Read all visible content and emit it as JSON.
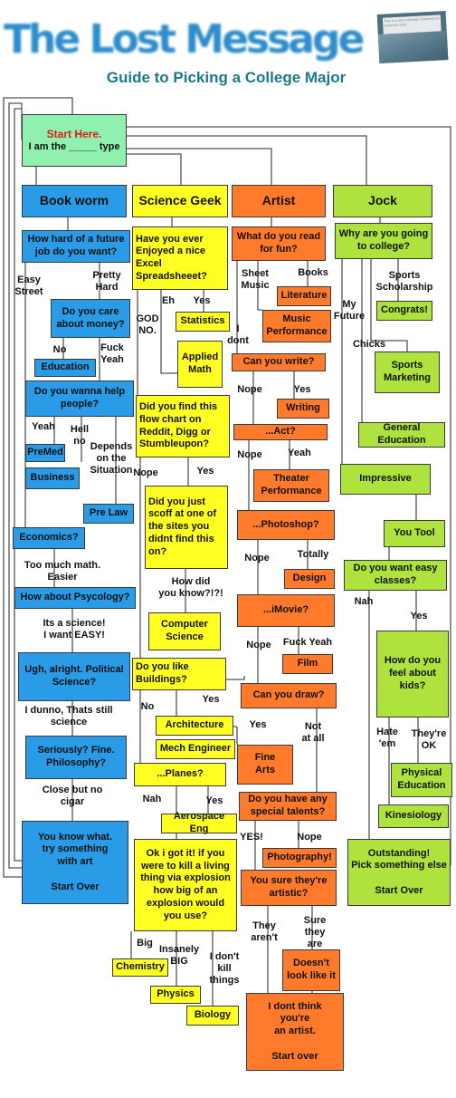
{
  "header": {
    "logo_text": "The Lost Message",
    "subtitle": "Guide to Picking a College Major",
    "envelope_text": "This is a lost message intended for someone else."
  },
  "colors": {
    "blue": "#2a9be6",
    "yellow": "#ffff22",
    "orange": "#ff7a2a",
    "green": "#aee23c",
    "start": "#8ff0b0",
    "start_title": "#e01818",
    "logo": "#2e8dcc",
    "subtitle": "#1b7a8a",
    "line": "#555555"
  },
  "nodes": {
    "start_title": "Start Here.",
    "start_text": "I am the _____ type",
    "bookworm": "Book worm",
    "science_geek": "Science Geek",
    "artist": "Artist",
    "jock": "Jock",
    "bw_q_future": "How hard of a future job do you want?",
    "bw_q_money": "Do you care about money?",
    "bw_education": "Education",
    "bw_q_help": "Do you wanna help people?",
    "bw_premed": "PreMed",
    "bw_business": "Business",
    "bw_prelaw": "Pre Law",
    "bw_economics": "Economics?",
    "bw_psych": "How about Psycology?",
    "bw_polisci": "Ugh, alright. Political Science?",
    "bw_philosophy": "Seriously? Fine.\nPhilosophy?",
    "bw_art": "You know what.\ntry something\nwith art\n\nStart Over",
    "sg_q_spreadsheet": "Have you ever Enjoyed a nice Excel Spreadsheeet?",
    "sg_statistics": "Statistics",
    "sg_applied_math": "Applied\nMath",
    "sg_q_reddit": "Did you find this flow chart on Reddit, Digg or Stumbleupon?",
    "sg_q_scoff": "Did you just scoff at one of the sites you didnt find this on?",
    "sg_computer_science": "Computer\nScience",
    "sg_q_buildings": "Do you like Buildings?",
    "sg_architecture": "Architecture",
    "sg_mech_engineer": "Mech Engineer",
    "sg_q_planes": "...Planes?",
    "sg_aerospace": "Aerospace Eng",
    "sg_q_explosion": "Ok i got it! if you were to kill a living thing via explosion how big of an explosion would you use?",
    "sg_chemistry": "Chemistry",
    "sg_physics": "Physics",
    "sg_biology": "Biology",
    "ar_q_read": "What do you read for fun?",
    "ar_literature": "Literature",
    "ar_music_perf": "Music\nPerformance",
    "ar_q_write": "Can you write?",
    "ar_writing": "Writing",
    "ar_q_act": "...Act?",
    "ar_theater": "Theater\nPerformance",
    "ar_q_photoshop": "...Photoshop?",
    "ar_design": "Design",
    "ar_q_imovie": "...iMovie?",
    "ar_film": "Film",
    "ar_q_draw": "Can you draw?",
    "ar_fine_arts": "Fine\nArts",
    "ar_q_talents": "Do you have any special talents?",
    "ar_photography": "Photography!",
    "ar_q_artistic": "You sure they're artistic?",
    "ar_doesnt_look": "Doesn't\nlook like it",
    "ar_not_artist": "I dont think\nyou're\nan artist.\n\nStart over",
    "jk_q_why": "Why are you going to college?",
    "jk_congrats": "Congrats!",
    "jk_sports_marketing": "Sports\nMarketing",
    "jk_general_ed": "General\nEducation",
    "jk_impressive": "Impressive",
    "jk_you_tool": "You Tool",
    "jk_q_easy": "Do you want easy classes?",
    "jk_q_kids": "How do you feel about kids?",
    "jk_phys_ed": "Physical\nEducation",
    "jk_kinesiology": "Kinesiology",
    "jk_outstanding": "Outstanding!\nPick something else\n\nStart Over"
  },
  "labels": {
    "easy_street": "Easy\nStreet",
    "pretty_hard": "Pretty\nHard",
    "no": "No",
    "fuck_yeah_1": "Fuck\nYeah",
    "yeah_1": "Yeah",
    "hell_no": "Hell\nno",
    "depends": "Depends\non the\nSituation",
    "too_much_math": "Too much math.\nEasier",
    "its_a_science": "Its a science!\nI want EASY!",
    "still_science": "I dunno, Thats still\nscience",
    "close_no_cigar": "Close but no\ncigar",
    "eh": "Eh",
    "yes_1": "Yes",
    "god_no": "GOD\nNO.",
    "nope_1": "Nope",
    "yes_2": "Yes",
    "how_did_you_know": "How did\nyou know?!?!",
    "no_2": "No",
    "yes_3": "Yes",
    "nah_1": "Nah",
    "yes_4": "Yes",
    "big": "Big",
    "insanely_big": "Insanely\nBIG",
    "dont_kill": "I don't\nkill\nthings",
    "sheet_music": "Sheet\nMusic",
    "books": "Books",
    "i_dont": "I\ndont",
    "nope_2": "Nope",
    "yes_5": "Yes",
    "nope_3": "Nope",
    "yeah_2": "Yeah",
    "nope_4": "Nope",
    "totally": "Totally",
    "nope_5": "Nope",
    "fuck_yeah_2": "Fuck Yeah",
    "yes_6": "Yes",
    "not_at_all": "Not\nat all",
    "yes_excl": "YES!",
    "nope_6": "Nope",
    "they_arent": "They\naren't",
    "sure_they_are": "Sure\nthey are",
    "sports_scholarship": "Sports\nScholarship",
    "my_future": "My\nFuture",
    "chicks": "Chicks",
    "nah_2": "Nah",
    "yes_7": "Yes",
    "hate_em": "Hate\n'em",
    "theyre_ok": "They're\nOK"
  }
}
